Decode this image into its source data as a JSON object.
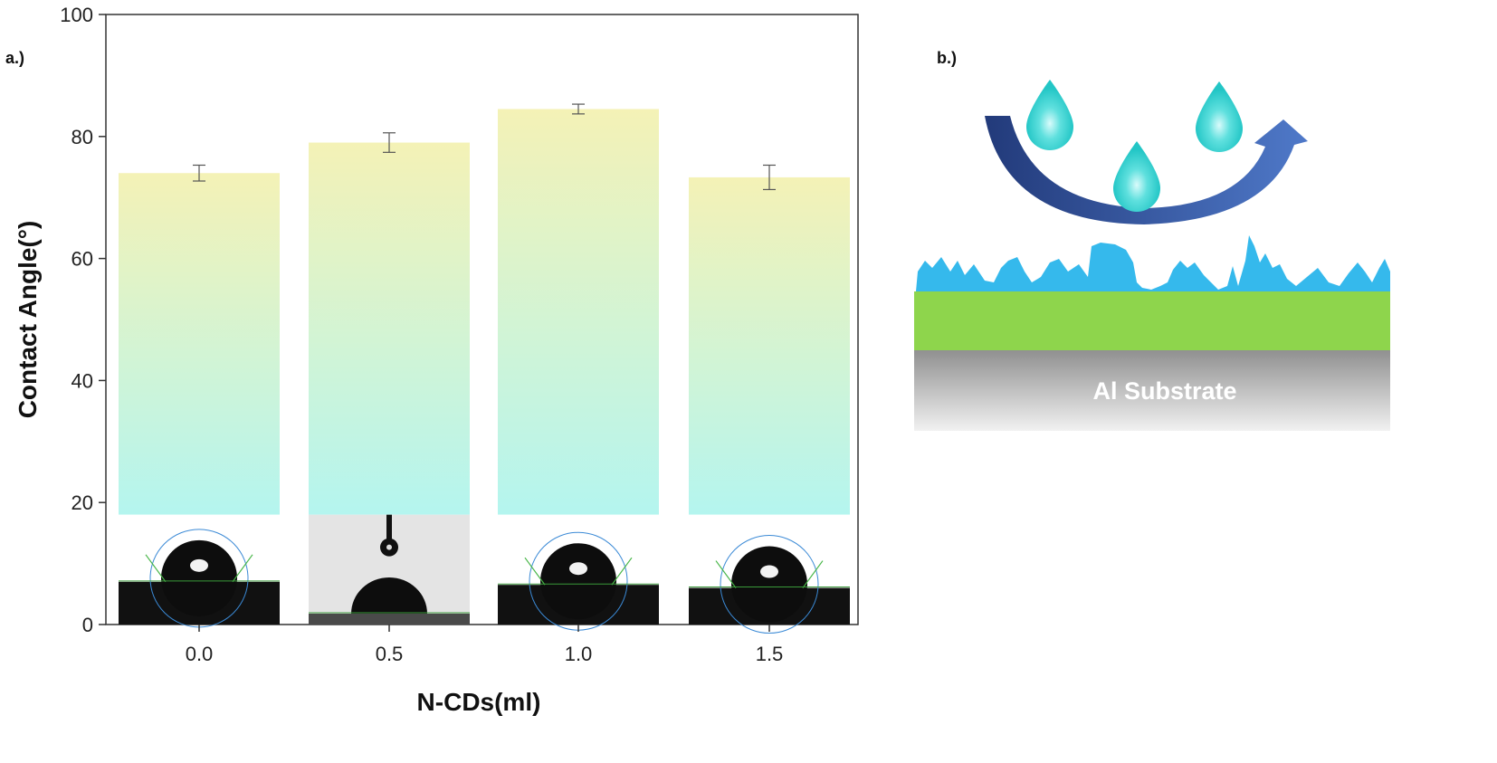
{
  "panel_a_label": "a.)",
  "panel_b_label": "b.)",
  "chart_data": {
    "type": "bar",
    "categories": [
      "0.0",
      "0.5",
      "1.0",
      "1.5"
    ],
    "values": [
      74.0,
      79.0,
      84.5,
      73.3
    ],
    "error": [
      1.3,
      1.6,
      0.8,
      2.0
    ],
    "xlabel": "N-CDs(ml)",
    "ylabel": "Contact Angle(°)",
    "ylim": [
      0,
      100
    ],
    "yticks": [
      0,
      20,
      40,
      60,
      80,
      100
    ],
    "grid": false,
    "bar_gradient": [
      "#f4f2b6",
      "#b4f5ef"
    ],
    "droplet_images": [
      "0.0",
      "0.5",
      "1.0",
      "1.5"
    ]
  },
  "schematic": {
    "substrate_label": "Al Substrate",
    "coating_color": "#8ed54c",
    "roughness_color": "#35b9ec",
    "droplet_color": "#2ad1cf",
    "arrow_color": "#2f4d99"
  }
}
